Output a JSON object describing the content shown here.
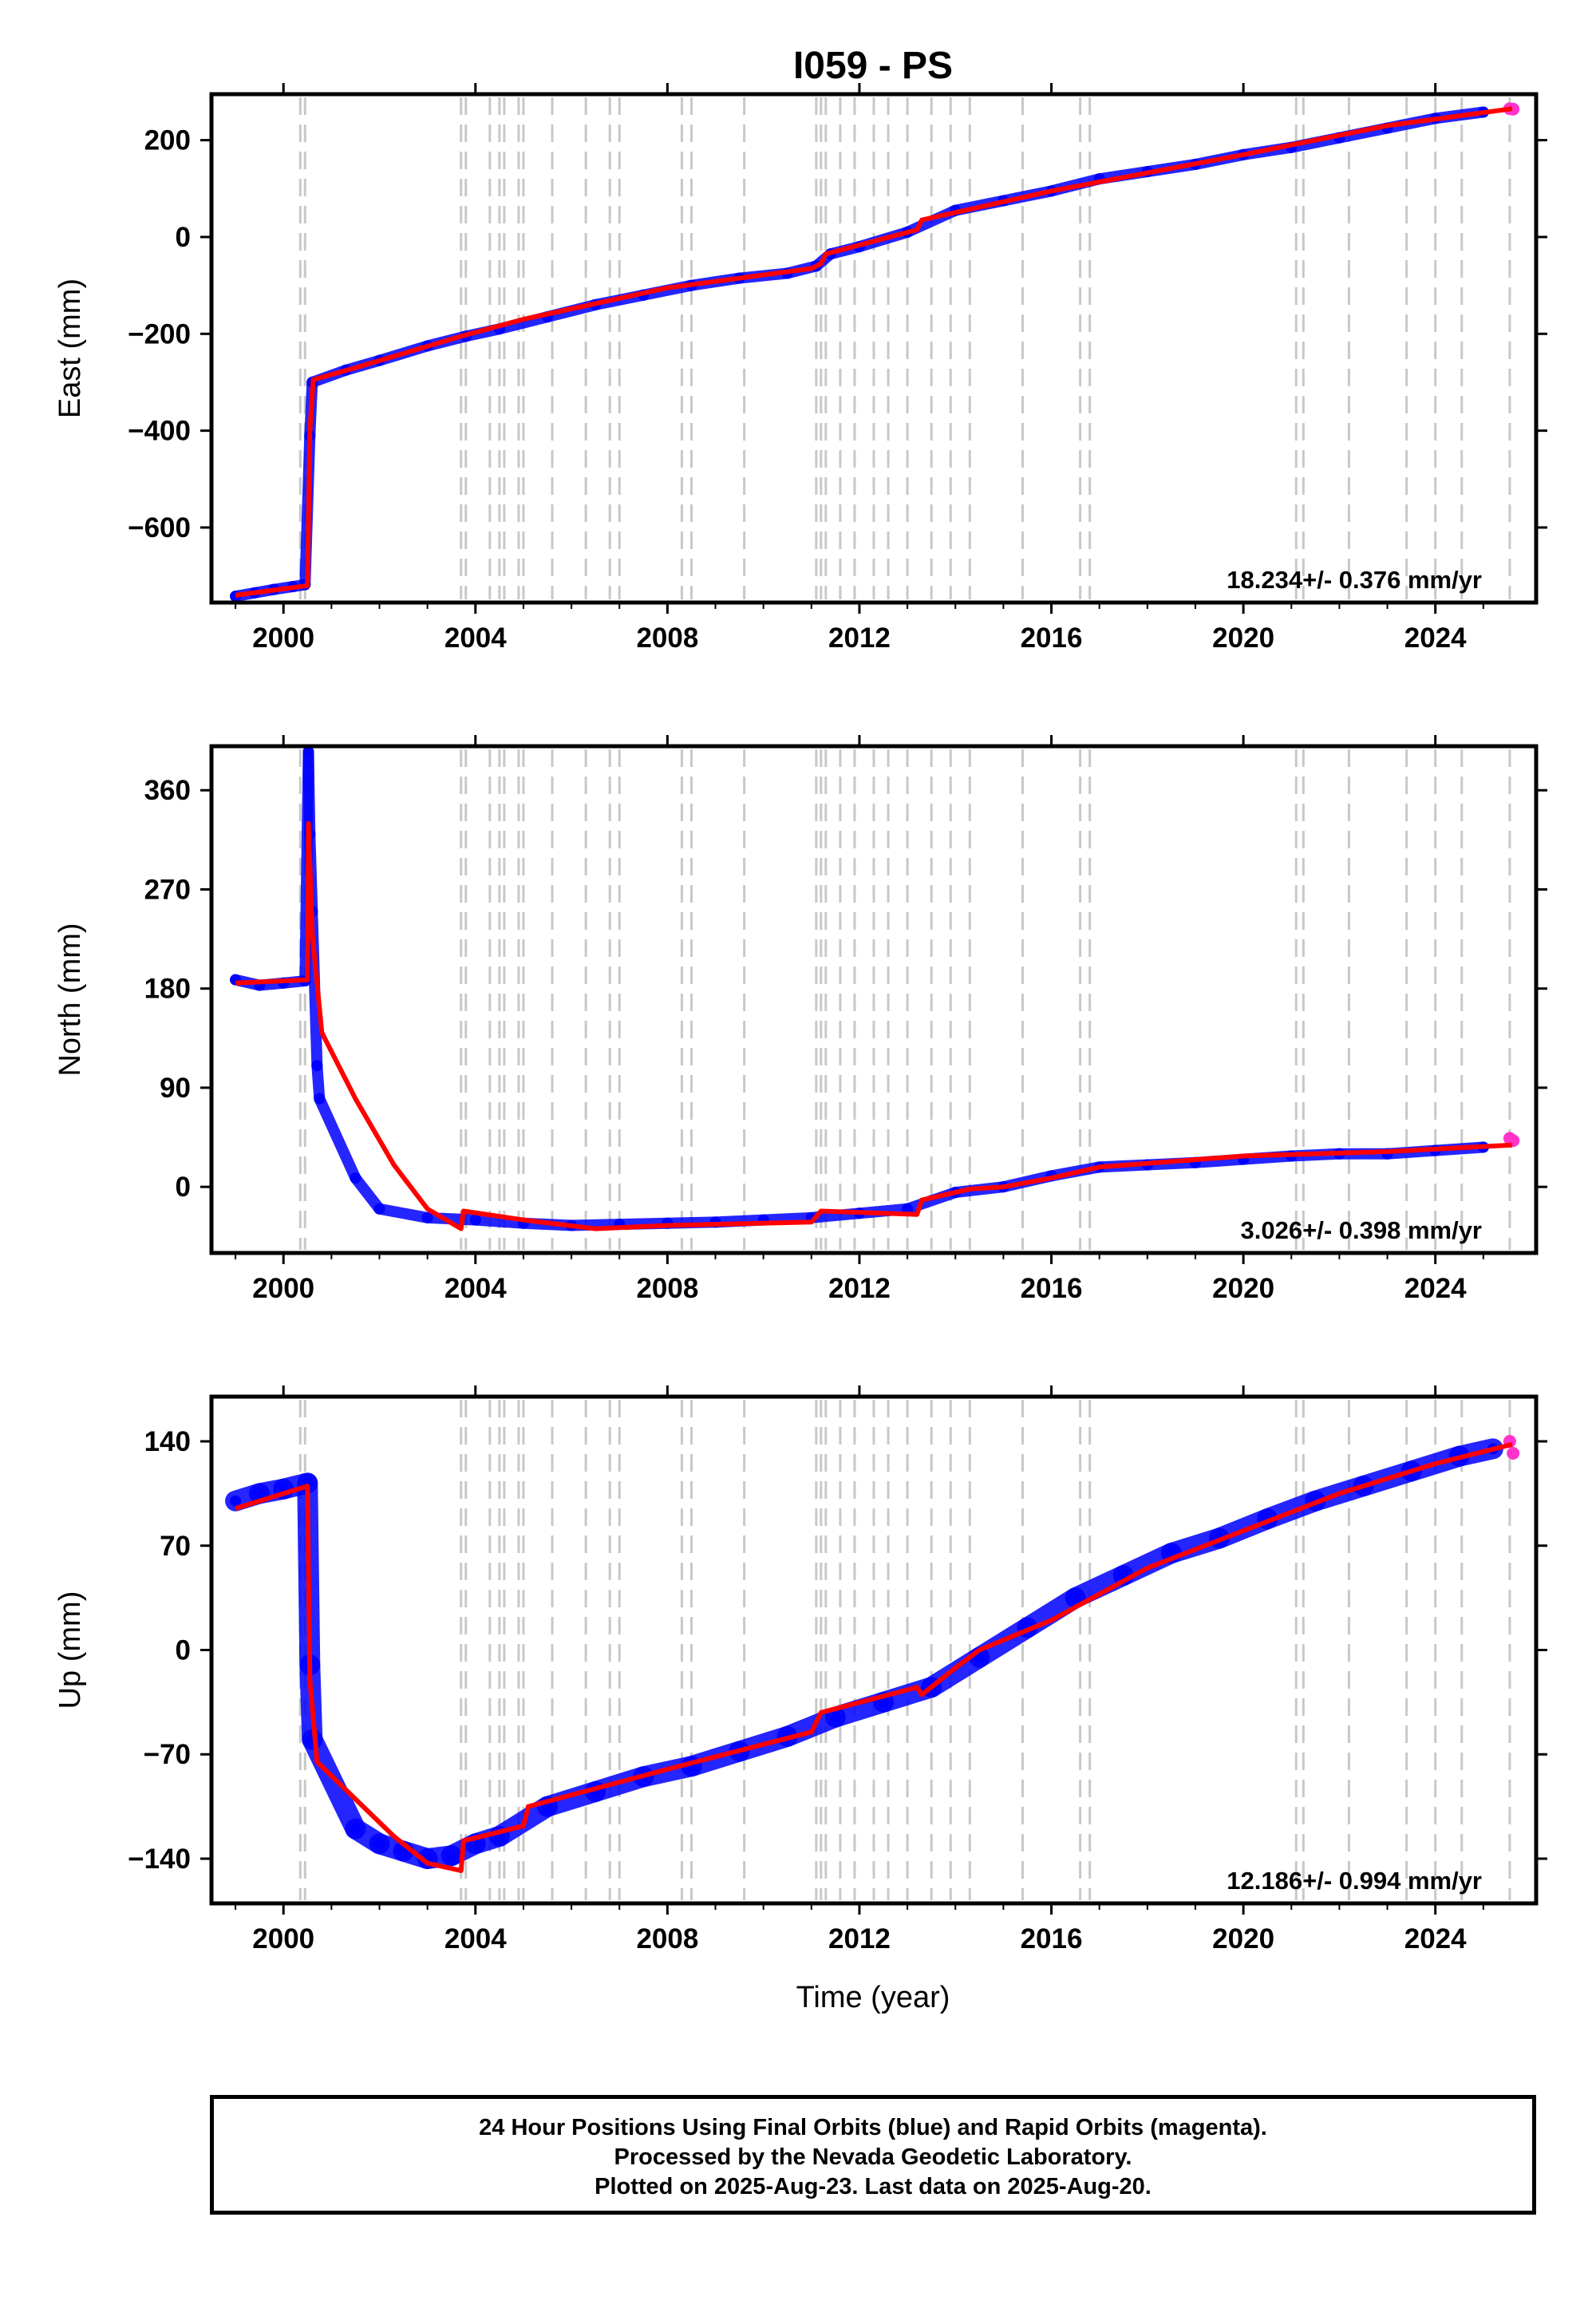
{
  "title": "I059 - PS",
  "xlabel": "Time (year)",
  "caption": [
    "24 Hour Positions Using Final Orbits (blue) and Rapid Orbits (magenta).",
    "Processed by the Nevada Geodetic Laboratory.",
    "Plotted on 2025-Aug-23. Last data on 2025-Aug-20."
  ],
  "colors": {
    "final": "#0000ff",
    "rapid": "#ff33cc",
    "model": "#ff0000",
    "event_line": "#c8c8c8"
  },
  "chart_data": [
    {
      "type": "scatter",
      "ylabel": "East (mm)",
      "rate": "18.234+/- 0.376 mm/yr",
      "xlim": [
        1998.5,
        2026.1
      ],
      "ylim": [
        -755,
        295
      ],
      "xticks": [
        2000,
        2004,
        2008,
        2012,
        2016,
        2020,
        2024
      ],
      "yticks": [
        -600,
        -400,
        -200,
        0,
        200
      ],
      "ytick_labels": [
        "−600",
        "−400",
        "−200",
        "0",
        "200"
      ],
      "model": [
        [
          1999.0,
          -740
        ],
        [
          2000.5,
          -720
        ],
        [
          2000.55,
          -400
        ],
        [
          2000.62,
          -295
        ],
        [
          2001.5,
          -270
        ],
        [
          2003.7,
          -205
        ],
        [
          2005.0,
          -170
        ],
        [
          2008.0,
          -105
        ],
        [
          2011.0,
          -65
        ],
        [
          2011.2,
          -55
        ],
        [
          2011.3,
          -35
        ],
        [
          2013.2,
          15
        ],
        [
          2013.3,
          35
        ],
        [
          2016.0,
          95
        ],
        [
          2020.0,
          170
        ],
        [
          2023.0,
          230
        ],
        [
          2025.6,
          265
        ]
      ],
      "points": [
        [
          1999.0,
          -742
        ],
        [
          1999.4,
          -735
        ],
        [
          1999.8,
          -728
        ],
        [
          2000.2,
          -722
        ],
        [
          2000.45,
          -718
        ],
        [
          2000.55,
          -410
        ],
        [
          2000.6,
          -300
        ],
        [
          2001.3,
          -275
        ],
        [
          2002.0,
          -255
        ],
        [
          2003.0,
          -225
        ],
        [
          2003.8,
          -205
        ],
        [
          2004.5,
          -190
        ],
        [
          2005.5,
          -165
        ],
        [
          2006.5,
          -140
        ],
        [
          2007.5,
          -120
        ],
        [
          2008.5,
          -100
        ],
        [
          2009.5,
          -85
        ],
        [
          2010.5,
          -75
        ],
        [
          2011.1,
          -60
        ],
        [
          2011.4,
          -35
        ],
        [
          2012.0,
          -20
        ],
        [
          2013.0,
          10
        ],
        [
          2014.0,
          55
        ],
        [
          2015.0,
          75
        ],
        [
          2016.0,
          95
        ],
        [
          2017.0,
          120
        ],
        [
          2018.0,
          135
        ],
        [
          2019.0,
          150
        ],
        [
          2020.0,
          170
        ],
        [
          2021.0,
          185
        ],
        [
          2022.0,
          205
        ],
        [
          2023.0,
          225
        ],
        [
          2024.0,
          245
        ],
        [
          2025.0,
          258
        ]
      ],
      "rapid_points": [
        [
          2025.55,
          265
        ],
        [
          2025.62,
          264
        ]
      ]
    },
    {
      "type": "scatter",
      "ylabel": "North (mm)",
      "rate": "3.026+/- 0.398 mm/yr",
      "xlim": [
        1998.5,
        2026.1
      ],
      "ylim": [
        -60,
        400
      ],
      "xticks": [
        2000,
        2004,
        2008,
        2012,
        2016,
        2020,
        2024
      ],
      "yticks": [
        0,
        90,
        180,
        270,
        360
      ],
      "ytick_labels": [
        "0",
        "90",
        "180",
        "270",
        "360"
      ],
      "model": [
        [
          1999.0,
          185
        ],
        [
          2000.5,
          188
        ],
        [
          2000.52,
          330
        ],
        [
          2000.6,
          230
        ],
        [
          2000.8,
          140
        ],
        [
          2001.5,
          80
        ],
        [
          2002.3,
          20
        ],
        [
          2003.0,
          -20
        ],
        [
          2003.7,
          -38
        ],
        [
          2003.75,
          -22
        ],
        [
          2005.0,
          -30
        ],
        [
          2006.5,
          -38
        ],
        [
          2008.0,
          -35
        ],
        [
          2011.0,
          -32
        ],
        [
          2011.2,
          -22
        ],
        [
          2013.2,
          -25
        ],
        [
          2013.3,
          -12
        ],
        [
          2014.3,
          -2
        ],
        [
          2015.0,
          0
        ],
        [
          2016.0,
          8
        ],
        [
          2017.0,
          18
        ],
        [
          2020.0,
          28
        ],
        [
          2023.0,
          32
        ],
        [
          2025.6,
          38
        ]
      ],
      "points": [
        [
          1999.0,
          188
        ],
        [
          1999.5,
          183
        ],
        [
          2000.0,
          185
        ],
        [
          2000.45,
          187
        ],
        [
          2000.52,
          395
        ],
        [
          2000.55,
          320
        ],
        [
          2000.6,
          250
        ],
        [
          2000.7,
          110
        ],
        [
          2000.75,
          80
        ],
        [
          2001.5,
          8
        ],
        [
          2002.0,
          -20
        ],
        [
          2003.0,
          -28
        ],
        [
          2004.0,
          -30
        ],
        [
          2005.0,
          -33
        ],
        [
          2006.0,
          -35
        ],
        [
          2007.0,
          -34
        ],
        [
          2008.0,
          -33
        ],
        [
          2009.0,
          -32
        ],
        [
          2010.0,
          -30
        ],
        [
          2011.0,
          -28
        ],
        [
          2012.0,
          -24
        ],
        [
          2013.0,
          -20
        ],
        [
          2014.0,
          -5
        ],
        [
          2015.0,
          0
        ],
        [
          2016.0,
          10
        ],
        [
          2017.0,
          18
        ],
        [
          2018.0,
          20
        ],
        [
          2019.0,
          22
        ],
        [
          2020.0,
          25
        ],
        [
          2021.0,
          28
        ],
        [
          2022.0,
          30
        ],
        [
          2023.0,
          30
        ],
        [
          2024.0,
          33
        ],
        [
          2025.0,
          36
        ]
      ],
      "rapid_points": [
        [
          2025.55,
          44
        ],
        [
          2025.62,
          42
        ]
      ]
    },
    {
      "type": "scatter",
      "ylabel": "Up (mm)",
      "rate": "12.186+/- 0.994 mm/yr",
      "xlim": [
        1998.5,
        2026.1
      ],
      "ylim": [
        -170,
        170
      ],
      "xticks": [
        2000,
        2004,
        2008,
        2012,
        2016,
        2020,
        2024
      ],
      "yticks": [
        -140,
        -70,
        0,
        70,
        140
      ],
      "ytick_labels": [
        "−140",
        "−70",
        "0",
        "70",
        "140"
      ],
      "model": [
        [
          1999.0,
          95
        ],
        [
          2000.5,
          110
        ],
        [
          2000.55,
          -20
        ],
        [
          2000.7,
          -75
        ],
        [
          2001.5,
          -100
        ],
        [
          2002.3,
          -125
        ],
        [
          2003.0,
          -143
        ],
        [
          2003.7,
          -148
        ],
        [
          2003.75,
          -128
        ],
        [
          2005.0,
          -118
        ],
        [
          2005.1,
          -105
        ],
        [
          2008.0,
          -80
        ],
        [
          2011.0,
          -55
        ],
        [
          2011.2,
          -42
        ],
        [
          2013.2,
          -25
        ],
        [
          2013.3,
          -30
        ],
        [
          2014.0,
          -12
        ],
        [
          2014.5,
          0
        ],
        [
          2016.0,
          20
        ],
        [
          2018.0,
          55
        ],
        [
          2020.0,
          80
        ],
        [
          2022.0,
          105
        ],
        [
          2024.0,
          125
        ],
        [
          2025.6,
          138
        ]
      ],
      "points": [
        [
          1999.0,
          100
        ],
        [
          1999.5,
          105
        ],
        [
          2000.0,
          108
        ],
        [
          2000.5,
          112
        ],
        [
          2000.55,
          -10
        ],
        [
          2000.6,
          -60
        ],
        [
          2001.5,
          -120
        ],
        [
          2002.0,
          -130
        ],
        [
          2002.5,
          -135
        ],
        [
          2003.0,
          -140
        ],
        [
          2003.5,
          -138
        ],
        [
          2004.0,
          -130
        ],
        [
          2004.5,
          -125
        ],
        [
          2005.5,
          -105
        ],
        [
          2006.5,
          -95
        ],
        [
          2007.5,
          -85
        ],
        [
          2008.5,
          -78
        ],
        [
          2009.5,
          -68
        ],
        [
          2010.5,
          -58
        ],
        [
          2011.5,
          -45
        ],
        [
          2012.5,
          -35
        ],
        [
          2013.5,
          -25
        ],
        [
          2014.5,
          -5
        ],
        [
          2015.5,
          15
        ],
        [
          2016.5,
          35
        ],
        [
          2017.5,
          50
        ],
        [
          2018.5,
          65
        ],
        [
          2019.5,
          75
        ],
        [
          2020.5,
          88
        ],
        [
          2021.5,
          100
        ],
        [
          2022.5,
          110
        ],
        [
          2023.5,
          120
        ],
        [
          2024.5,
          130
        ],
        [
          2025.2,
          135
        ]
      ],
      "rapid_points": [
        [
          2025.55,
          140
        ],
        [
          2025.62,
          132
        ]
      ]
    }
  ],
  "events": [
    2000.35,
    2000.45,
    2003.7,
    2003.8,
    2004.3,
    2004.5,
    2004.6,
    2004.9,
    2005.0,
    2005.6,
    2006.3,
    2006.8,
    2007.0,
    2008.3,
    2008.5,
    2009.6,
    2011.1,
    2011.2,
    2011.3,
    2011.6,
    2011.9,
    2012.3,
    2012.6,
    2013.0,
    2013.5,
    2013.9,
    2014.3,
    2015.4,
    2016.6,
    2016.8,
    2021.1,
    2021.25,
    2022.2,
    2023.4,
    2024.0,
    2024.55,
    2025.55
  ]
}
